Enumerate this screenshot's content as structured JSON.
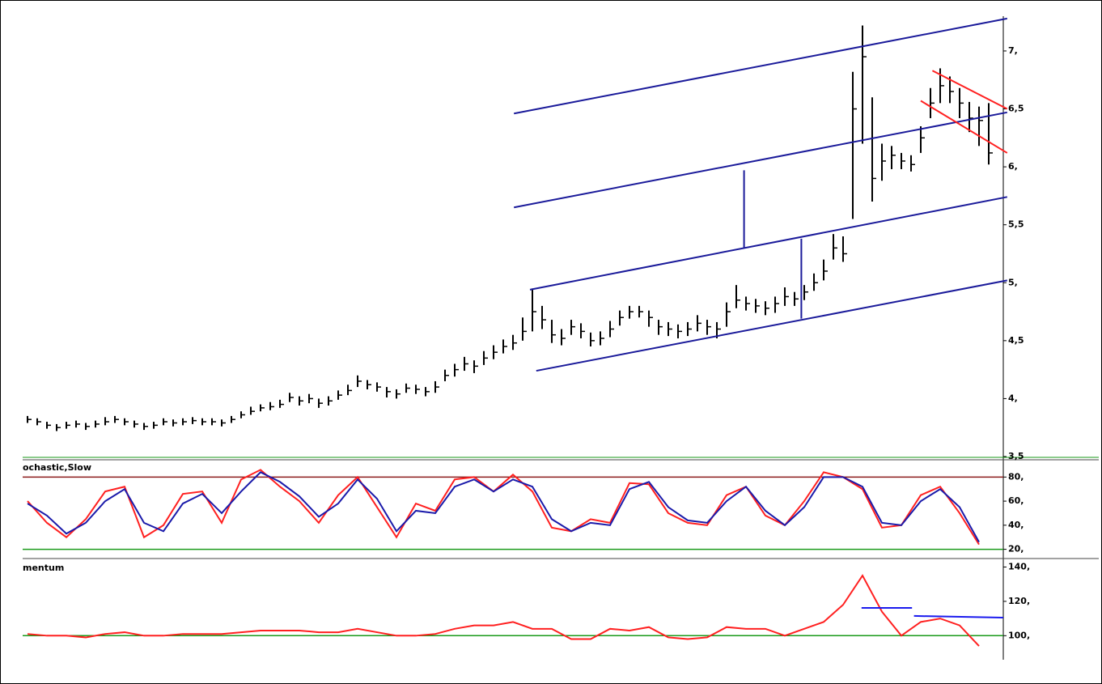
{
  "chart_data": [
    {
      "type": "ohlc",
      "ylim": [
        3.5,
        7.3
      ],
      "yticks": [
        {
          "value": 3.5,
          "label": "3,5"
        },
        {
          "value": 4,
          "label": "4,"
        },
        {
          "value": 4.5,
          "label": "4,5"
        },
        {
          "value": 5,
          "label": "5,"
        },
        {
          "value": 5.5,
          "label": "5,5"
        },
        {
          "value": 6,
          "label": "6,"
        },
        {
          "value": 6.5,
          "label": "6,5"
        },
        {
          "value": 7,
          "label": "7,"
        }
      ],
      "color": "#000000",
      "high": [
        3.85,
        3.83,
        3.8,
        3.78,
        3.8,
        3.81,
        3.79,
        3.81,
        3.84,
        3.85,
        3.83,
        3.81,
        3.79,
        3.8,
        3.83,
        3.82,
        3.83,
        3.84,
        3.83,
        3.83,
        3.82,
        3.85,
        3.89,
        3.93,
        3.95,
        3.97,
        3.99,
        4.05,
        4.02,
        4.04,
        4.0,
        4.02,
        4.07,
        4.12,
        4.2,
        4.16,
        4.14,
        4.1,
        4.08,
        4.13,
        4.12,
        4.1,
        4.15,
        4.25,
        4.3,
        4.36,
        4.33,
        4.41,
        4.46,
        4.51,
        4.55,
        4.7,
        4.95,
        4.8,
        4.68,
        4.6,
        4.68,
        4.65,
        4.57,
        4.58,
        4.67,
        4.76,
        4.8,
        4.8,
        4.76,
        4.68,
        4.66,
        4.64,
        4.66,
        4.72,
        4.68,
        4.66,
        4.83,
        4.98,
        4.88,
        4.86,
        4.84,
        4.88,
        4.96,
        4.92,
        4.98,
        5.08,
        5.2,
        5.42,
        5.4,
        6.82,
        7.22,
        6.6,
        6.2,
        6.18,
        6.12,
        6.1,
        6.35,
        6.68,
        6.85,
        6.78,
        6.68,
        6.56,
        6.52,
        6.55
      ],
      "low": [
        3.79,
        3.77,
        3.74,
        3.72,
        3.74,
        3.75,
        3.73,
        3.75,
        3.77,
        3.79,
        3.77,
        3.75,
        3.73,
        3.74,
        3.77,
        3.76,
        3.77,
        3.78,
        3.77,
        3.77,
        3.76,
        3.79,
        3.83,
        3.86,
        3.89,
        3.9,
        3.92,
        3.97,
        3.94,
        3.96,
        3.92,
        3.94,
        3.99,
        4.03,
        4.1,
        4.08,
        4.06,
        4.01,
        4.0,
        4.05,
        4.04,
        4.02,
        4.05,
        4.15,
        4.19,
        4.24,
        4.22,
        4.29,
        4.34,
        4.39,
        4.42,
        4.5,
        4.58,
        4.6,
        4.48,
        4.46,
        4.55,
        4.52,
        4.45,
        4.46,
        4.53,
        4.63,
        4.69,
        4.7,
        4.62,
        4.55,
        4.54,
        4.52,
        4.54,
        4.58,
        4.55,
        4.52,
        4.62,
        4.78,
        4.76,
        4.74,
        4.72,
        4.74,
        4.8,
        4.8,
        4.85,
        4.93,
        5.02,
        5.2,
        5.18,
        5.55,
        6.2,
        5.7,
        5.88,
        5.98,
        5.98,
        5.96,
        6.12,
        6.42,
        6.55,
        6.55,
        6.42,
        6.3,
        6.18,
        6.02
      ],
      "close": [
        3.82,
        3.8,
        3.77,
        3.75,
        3.77,
        3.78,
        3.76,
        3.78,
        3.8,
        3.82,
        3.8,
        3.78,
        3.76,
        3.77,
        3.8,
        3.79,
        3.8,
        3.81,
        3.8,
        3.8,
        3.79,
        3.82,
        3.86,
        3.89,
        3.92,
        3.93,
        3.95,
        4.01,
        3.98,
        4.0,
        3.96,
        3.98,
        4.03,
        4.07,
        4.15,
        4.12,
        4.1,
        4.06,
        4.04,
        4.09,
        4.08,
        4.06,
        4.1,
        4.2,
        4.25,
        4.3,
        4.28,
        4.35,
        4.4,
        4.45,
        4.48,
        4.58,
        4.75,
        4.68,
        4.55,
        4.52,
        4.62,
        4.58,
        4.5,
        4.52,
        4.6,
        4.7,
        4.75,
        4.75,
        4.7,
        4.62,
        4.6,
        4.58,
        4.6,
        4.65,
        4.62,
        4.6,
        4.75,
        4.85,
        4.82,
        4.8,
        4.78,
        4.82,
        4.88,
        4.86,
        4.92,
        5.0,
        5.1,
        5.3,
        5.25,
        6.5,
        6.95,
        5.9,
        6.05,
        6.1,
        6.05,
        6.02,
        6.25,
        6.55,
        6.7,
        6.65,
        6.55,
        6.42,
        6.4,
        6.12
      ],
      "lines": [
        {
          "x": [
            50.1,
            100.9
          ],
          "y": [
            6.46,
            7.28
          ],
          "color": "#1a1a9a"
        },
        {
          "x": [
            50.1,
            100.9
          ],
          "y": [
            5.65,
            6.47
          ],
          "color": "#1a1a9a"
        },
        {
          "x": [
            51.75,
            100.9
          ],
          "y": [
            4.94,
            5.74
          ],
          "color": "#1a1a9a"
        },
        {
          "x": [
            52.4,
            100.9
          ],
          "y": [
            4.24,
            5.02
          ],
          "color": "#1a1a9a"
        },
        {
          "x": [
            73.8,
            73.8
          ],
          "y": [
            5.97,
            5.3
          ],
          "color": "#1a1a9a"
        },
        {
          "x": [
            79.7,
            79.7
          ],
          "y": [
            5.38,
            4.69
          ],
          "color": "#1a1a9a"
        },
        {
          "x": [
            93.2,
            100.9
          ],
          "y": [
            6.83,
            6.5
          ],
          "color": "#ff2020"
        },
        {
          "x": [
            92,
            100.9
          ],
          "y": [
            6.57,
            6.12
          ],
          "color": "#ff2020"
        }
      ]
    },
    {
      "type": "line",
      "title": "ochastic,Slow",
      "ylim": [
        13,
        93
      ],
      "yticks": [
        {
          "value": 20,
          "label": "20,"
        },
        {
          "value": 40,
          "label": "40,"
        },
        {
          "value": 60,
          "label": "60,"
        },
        {
          "value": 80,
          "label": "80,"
        }
      ],
      "levels": [
        {
          "value": 80,
          "color": "#8b1a1a"
        },
        {
          "value": 20,
          "color": "#1a9a1a"
        }
      ],
      "series": [
        {
          "color": "#ff2020",
          "values": [
            60,
            42,
            30,
            45,
            68,
            72,
            30,
            40,
            66,
            68,
            42,
            78,
            86,
            72,
            60,
            42,
            65,
            80,
            55,
            30,
            58,
            52,
            78,
            80,
            68,
            82,
            68,
            38,
            35,
            45,
            42,
            75,
            74,
            50,
            42,
            40,
            65,
            72,
            48,
            40,
            60,
            84,
            80,
            70,
            38,
            40,
            65,
            72,
            50,
            24
          ]
        },
        {
          "color": "#1a1aaa",
          "values": [
            58,
            48,
            33,
            42,
            60,
            70,
            42,
            35,
            58,
            66,
            50,
            68,
            84,
            76,
            64,
            47,
            58,
            78,
            62,
            35,
            52,
            50,
            72,
            78,
            68,
            78,
            72,
            45,
            35,
            42,
            40,
            70,
            76,
            55,
            44,
            42,
            60,
            72,
            52,
            40,
            55,
            80,
            80,
            72,
            42,
            40,
            60,
            70,
            55,
            26
          ]
        }
      ]
    },
    {
      "type": "line",
      "title": "mentum",
      "ylim": [
        86,
        144
      ],
      "yticks": [
        {
          "value": 100,
          "label": "100,"
        },
        {
          "value": 120,
          "label": "120,"
        },
        {
          "value": 140,
          "label": "140,"
        }
      ],
      "levels": [
        {
          "value": 100,
          "color": "#1a9a1a"
        }
      ],
      "series": [
        {
          "color": "#ff2020",
          "values": [
            101,
            100,
            100,
            99,
            101,
            102,
            100,
            100,
            101,
            101,
            101,
            102,
            103,
            103,
            103,
            102,
            102,
            104,
            102,
            100,
            100,
            101,
            104,
            106,
            106,
            108,
            104,
            104,
            98,
            98,
            104,
            103,
            105,
            99,
            98,
            99,
            105,
            104,
            104,
            100,
            104,
            108,
            118,
            135,
            114,
            100,
            108,
            110,
            106,
            94
          ]
        }
      ],
      "lines": [
        {
          "x": [
            85.9,
            91.1
          ],
          "y": [
            116.2,
            116.2
          ],
          "color": "#1a1aee"
        },
        {
          "x": [
            91.3,
            100.5
          ],
          "y": [
            111.5,
            110.5
          ],
          "color": "#1a1aee"
        }
      ]
    }
  ]
}
